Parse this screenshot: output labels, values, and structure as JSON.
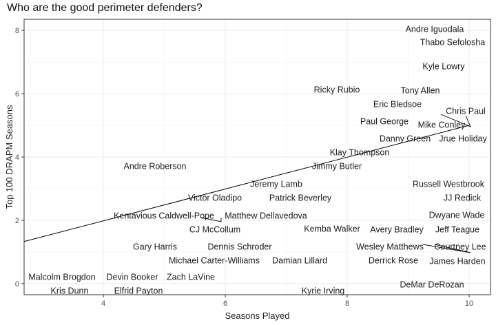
{
  "chart_data": {
    "type": "scatter",
    "title": "Who are the good perimeter defenders?",
    "xlabel": "Seasons Played",
    "ylabel": "Top 100 DRAPM Seasons",
    "xlim": [
      2.7,
      10.35
    ],
    "ylim": [
      -0.35,
      8.35
    ],
    "xticks": [
      4,
      6,
      8,
      10
    ],
    "yticks": [
      0,
      2,
      4,
      6,
      8
    ],
    "grid": true,
    "legend": "none",
    "trend_line": {
      "x": [
        2.7,
        10.0
      ],
      "y": [
        1.33,
        5.0
      ]
    },
    "points": [
      {
        "name": "Andre Iguodala",
        "x": 10,
        "y": 8
      },
      {
        "name": "Thabo Sefolosha",
        "x": 10,
        "y": 8
      },
      {
        "name": "Kyle Lowry",
        "x": 10,
        "y": 7
      },
      {
        "name": "Ricky Rubio",
        "x": 7,
        "y": 6
      },
      {
        "name": "Tony Allen",
        "x": 10,
        "y": 6
      },
      {
        "name": "Eric Bledsoe",
        "x": 8,
        "y": 6
      },
      {
        "name": "Chris Paul",
        "x": 10,
        "y": 5
      },
      {
        "name": "Paul George",
        "x": 8,
        "y": 5
      },
      {
        "name": "Mike Conley",
        "x": 10,
        "y": 5
      },
      {
        "name": "Danny Green",
        "x": 9,
        "y": 5
      },
      {
        "name": "Jrue Holiday",
        "x": 9,
        "y": 5
      },
      {
        "name": "Klay Thompson",
        "x": 7,
        "y": 4
      },
      {
        "name": "Andre Roberson",
        "x": 5,
        "y": 4
      },
      {
        "name": "Jimmy Butler",
        "x": 7,
        "y": 4
      },
      {
        "name": "Jeremy Lamb",
        "x": 6,
        "y": 3
      },
      {
        "name": "Russell Westbrook",
        "x": 10,
        "y": 3
      },
      {
        "name": "Victor Oladipo",
        "x": 5,
        "y": 3
      },
      {
        "name": "Patrick Beverley",
        "x": 6,
        "y": 3
      },
      {
        "name": "JJ Redick",
        "x": 10,
        "y": 3
      },
      {
        "name": "Kentavious Caldwell-Pope",
        "x": 5,
        "y": 2
      },
      {
        "name": "Matthew Dellavedova",
        "x": 6,
        "y": 2
      },
      {
        "name": "Dwyane Wade",
        "x": 10,
        "y": 2
      },
      {
        "name": "CJ McCollum",
        "x": 5,
        "y": 2
      },
      {
        "name": "Kemba Walker",
        "x": 7,
        "y": 2
      },
      {
        "name": "Avery Bradley",
        "x": 8,
        "y": 2
      },
      {
        "name": "Jeff Teague",
        "x": 10,
        "y": 2
      },
      {
        "name": "Gary Harris",
        "x": 4,
        "y": 1
      },
      {
        "name": "Dennis Schroder",
        "x": 5,
        "y": 1
      },
      {
        "name": "Wesley Matthews",
        "x": 9,
        "y": 1
      },
      {
        "name": "Courtney Lee",
        "x": 10,
        "y": 1
      },
      {
        "name": "Michael Carter-Williams",
        "x": 5,
        "y": 1
      },
      {
        "name": "Damian Lillard",
        "x": 6,
        "y": 1
      },
      {
        "name": "Derrick Rose",
        "x": 9,
        "y": 1
      },
      {
        "name": "James Harden",
        "x": 9,
        "y": 1
      },
      {
        "name": "Malcolm Brogdon",
        "x": 3,
        "y": 0
      },
      {
        "name": "Devin Booker",
        "x": 4,
        "y": 0
      },
      {
        "name": "Zach LaVine",
        "x": 5,
        "y": 0
      },
      {
        "name": "DeMar DeRozan",
        "x": 10,
        "y": 0
      },
      {
        "name": "Kris Dunn",
        "x": 3,
        "y": 0
      },
      {
        "name": "Elfrid Payton",
        "x": 4,
        "y": 0
      },
      {
        "name": "Kyrie Irving",
        "x": 7,
        "y": 0
      }
    ]
  }
}
